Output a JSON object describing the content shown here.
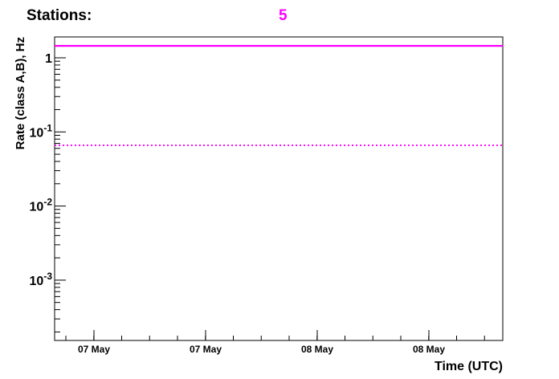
{
  "header": {
    "stations_label": "Stations:",
    "stations_value": "5"
  },
  "chart_data": {
    "type": "line",
    "title": "",
    "xlabel": "Time (UTC)",
    "ylabel": "Rate (class A,B), Hz",
    "yscale": "log",
    "ylim": [
      0.00018,
      2
    ],
    "x_tick_labels": [
      "07 May",
      "07 May",
      "08 May",
      "08 May"
    ],
    "y_tick_labels": [
      {
        "value": 1,
        "base": "1",
        "exp": ""
      },
      {
        "value": 0.1,
        "base": "10",
        "exp": "-1"
      },
      {
        "value": 0.01,
        "base": "10",
        "exp": "-2"
      },
      {
        "value": 0.001,
        "base": "10",
        "exp": "-3"
      }
    ],
    "series": [
      {
        "style": "solid",
        "color": "#ff00ff",
        "values": [
          1.45,
          1.45
        ]
      },
      {
        "style": "dotted",
        "color": "#ff00ff",
        "values": [
          0.066,
          0.066
        ]
      }
    ],
    "grid": false
  }
}
